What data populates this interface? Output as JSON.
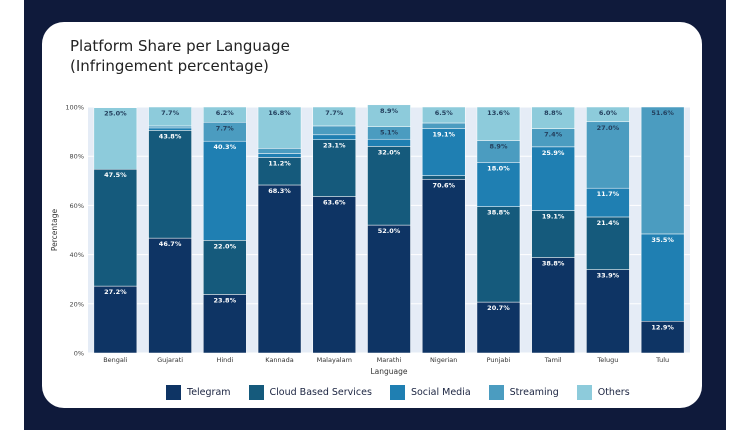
{
  "title": {
    "line1": "Platform Share per Language",
    "line2": "(Infringement percentage)"
  },
  "colors": {
    "frame": "#0f1a3b",
    "plot_bg": "#e5ecf6",
    "series": [
      "#0e3464",
      "#155a7c",
      "#1f7fb2",
      "#4b9cc0",
      "#8dcbdb"
    ]
  },
  "chart_data": {
    "type": "bar",
    "stacked": true,
    "xlabel": "Language",
    "ylabel": "Percentage",
    "ylim": [
      0,
      100
    ],
    "y_ticks": [
      "0%",
      "20%",
      "40%",
      "60%",
      "80%",
      "100%"
    ],
    "categories": [
      "Bengali",
      "Gujarati",
      "Hindi",
      "Kannada",
      "Malayalam",
      "Marathi",
      "Nigerian",
      "Punjabi",
      "Tamil",
      "Telugu",
      "Tulu"
    ],
    "series": [
      {
        "name": "Telegram",
        "values": [
          27.2,
          46.7,
          23.8,
          68.3,
          63.6,
          52.0,
          70.6,
          20.7,
          38.8,
          33.9,
          12.9
        ]
      },
      {
        "name": "Cloud Based Services",
        "values": [
          47.5,
          43.8,
          22.0,
          11.2,
          23.1,
          32.0,
          1.5,
          38.8,
          19.1,
          21.4,
          0
        ]
      },
      {
        "name": "Social Media",
        "values": [
          0,
          1.0,
          40.3,
          1.6,
          2.0,
          2.9,
          19.1,
          18.0,
          25.9,
          11.7,
          35.5
        ]
      },
      {
        "name": "Streaming",
        "values": [
          0,
          0.8,
          7.7,
          2.1,
          3.6,
          5.1,
          2.3,
          8.9,
          7.4,
          27.0,
          51.6
        ]
      },
      {
        "name": "Others",
        "values": [
          25.0,
          7.7,
          6.2,
          16.8,
          7.7,
          8.9,
          6.5,
          13.6,
          8.8,
          6.0,
          0
        ]
      }
    ],
    "labels": [
      [
        "27.2%",
        "47.5%",
        "",
        "",
        "25.0%"
      ],
      [
        "46.7%",
        "43.8%",
        "",
        "",
        "7.7%"
      ],
      [
        "23.8%",
        "22.0%",
        "40.3%",
        "7.7%",
        "6.2%"
      ],
      [
        "68.3%",
        "11.2%",
        "",
        "",
        "16.8%"
      ],
      [
        "63.6%",
        "23.1%",
        "",
        "",
        "7.7%"
      ],
      [
        "52.0%",
        "32.0%",
        "",
        "5.1%",
        "8.9%"
      ],
      [
        "70.6%",
        "",
        "19.1%",
        "",
        "6.5%"
      ],
      [
        "20.7%",
        "38.8%",
        "18.0%",
        "8.9%",
        "13.6%"
      ],
      [
        "38.8%",
        "19.1%",
        "25.9%",
        "7.4%",
        "8.8%"
      ],
      [
        "33.9%",
        "21.4%",
        "11.7%",
        "27.0%",
        "6.0%"
      ],
      [
        "12.9%",
        "",
        "35.5%",
        "51.6%",
        ""
      ]
    ]
  }
}
